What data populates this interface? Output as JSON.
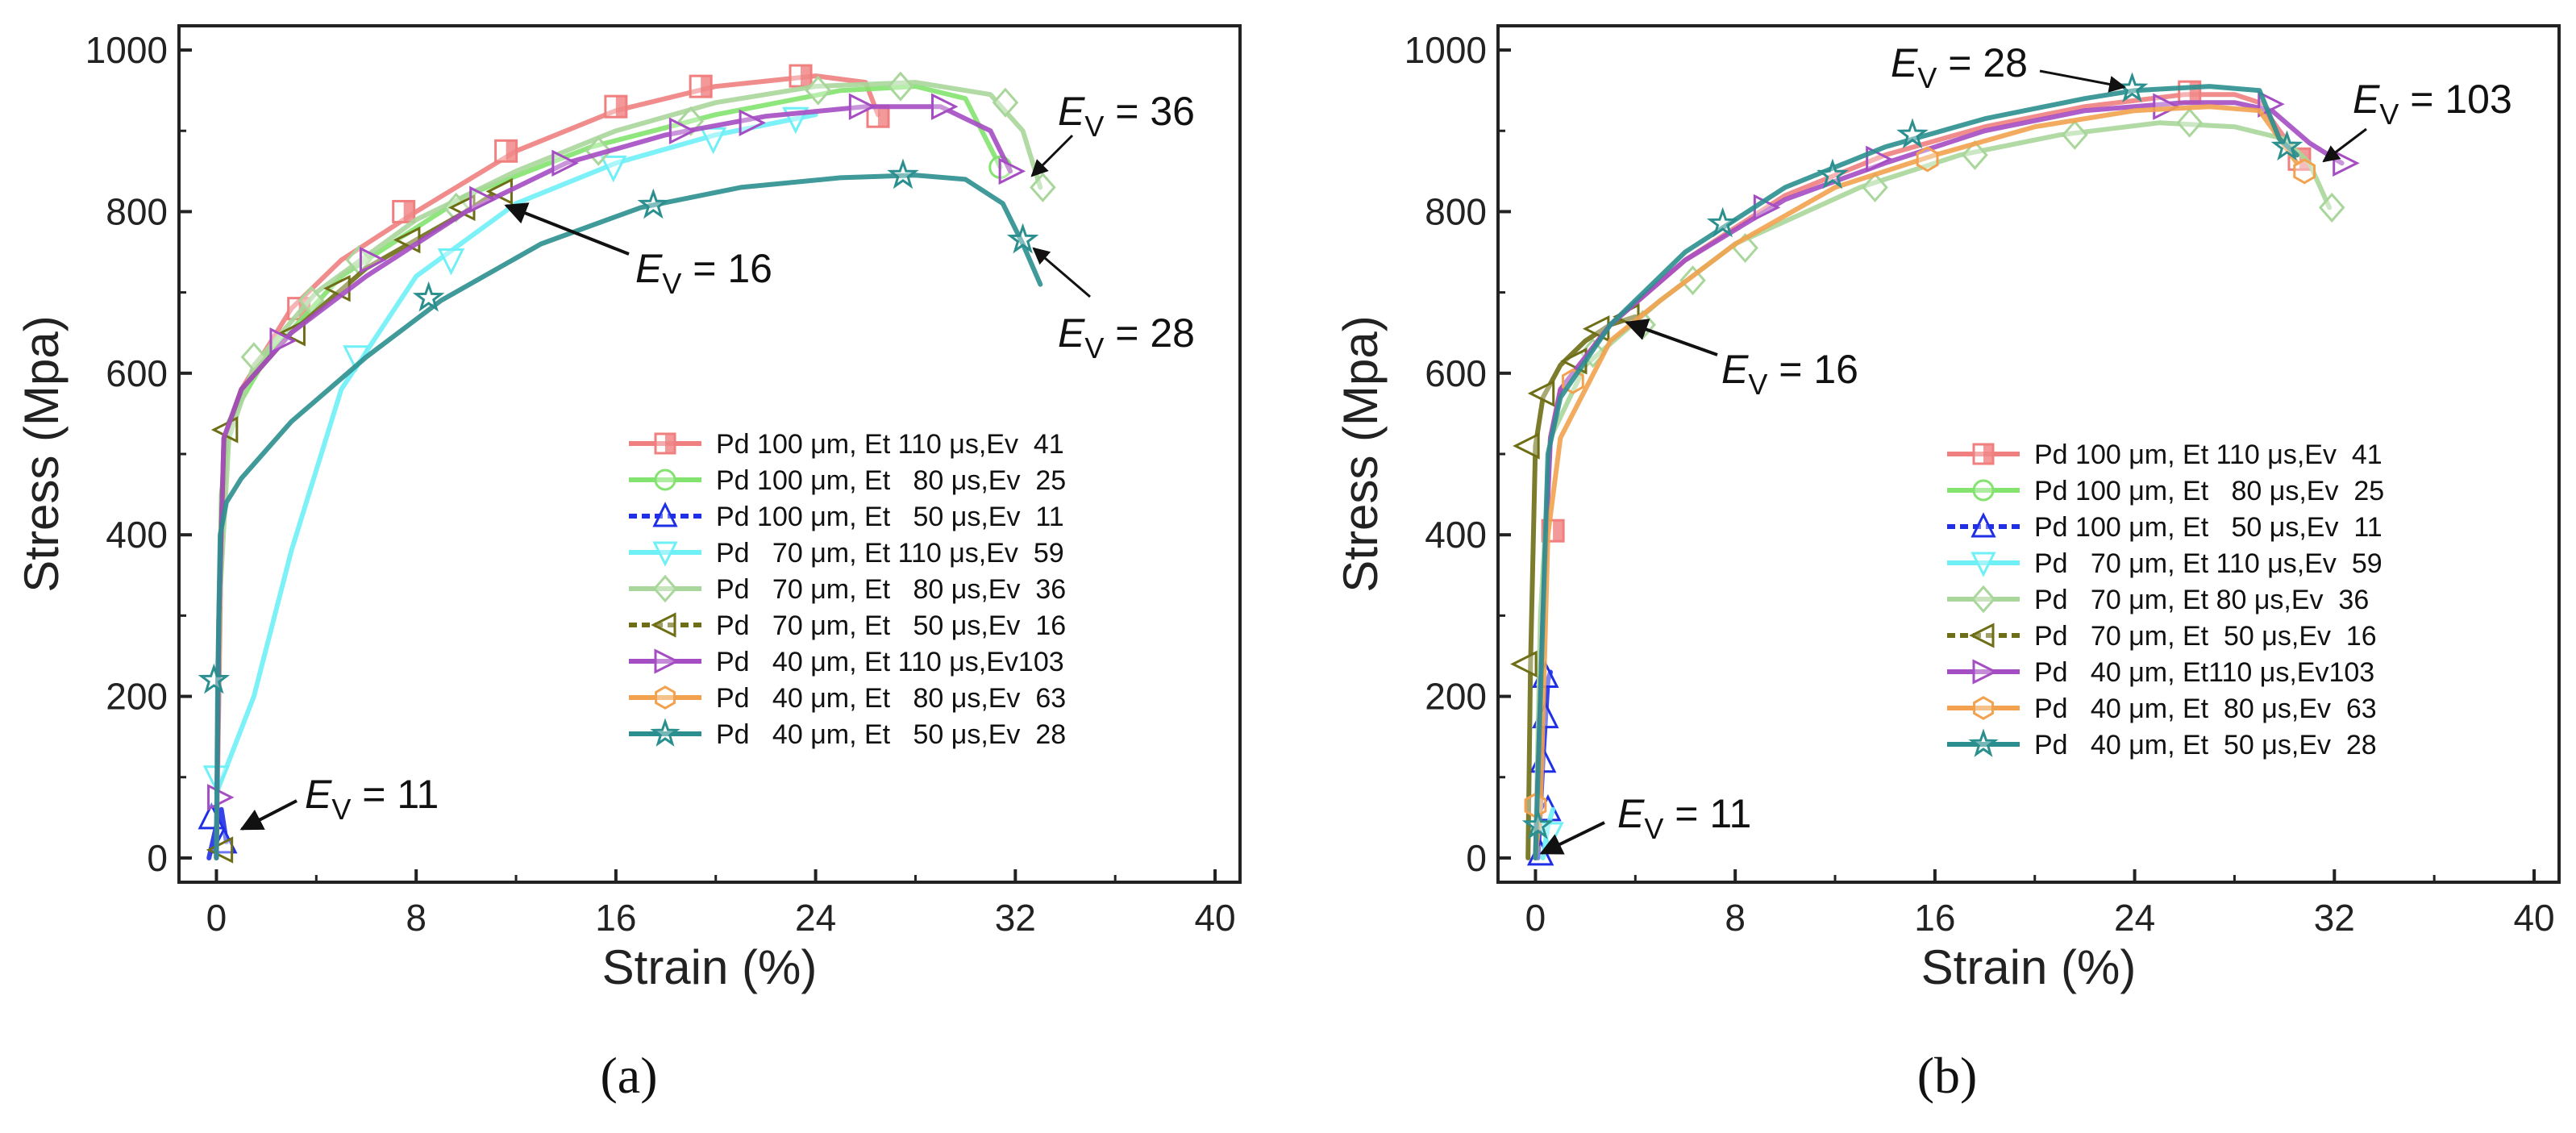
{
  "chart_data": [
    {
      "type": "line",
      "panel_label": "(a)",
      "xlabel": "Strain (%)",
      "ylabel": "Stress (Mpa)",
      "xlim": [
        -1.5,
        41
      ],
      "ylim": [
        -30,
        1030
      ],
      "xticks": [
        0,
        8,
        16,
        24,
        32,
        40
      ],
      "yticks": [
        0,
        200,
        400,
        600,
        800,
        1000
      ],
      "legend_position": "lower-right",
      "series": [
        {
          "name": "Pd 100 μm, Et 110 μs,Ev  41",
          "color": "#f07f7f",
          "marker": "square",
          "x": [
            0,
            0.1,
            0.2,
            0.4,
            1,
            3,
            5,
            8,
            12,
            16,
            20,
            24,
            26,
            26.5
          ],
          "y": [
            0,
            200,
            400,
            520,
            580,
            680,
            740,
            800,
            875,
            925,
            955,
            968,
            960,
            920
          ],
          "markers_x": [
            3.3,
            7.5,
            11.6,
            16,
            19.4,
            23.4,
            26.5
          ],
          "markers_y": [
            680,
            800,
            875,
            930,
            955,
            968,
            918
          ]
        },
        {
          "name": "Pd 100 μm, Et   80 μs,Ev  25",
          "color": "#82e36e",
          "marker": "circle",
          "x": [
            0,
            0.1,
            0.2,
            0.5,
            2,
            5,
            10,
            15,
            20,
            25,
            28,
            30,
            31.4
          ],
          "y": [
            0,
            250,
            450,
            540,
            620,
            720,
            820,
            880,
            920,
            950,
            955,
            940,
            855
          ],
          "markers_x": [
            31.4
          ],
          "markers_y": [
            855
          ]
        },
        {
          "name": "Pd 100 μm, Et   50 μs,Ev  11",
          "color": "#1f2fe6",
          "marker": "triangle-up",
          "x": [
            -0.3,
            0,
            0.2,
            0.4
          ],
          "y": [
            0,
            40,
            60,
            20
          ],
          "markers_x": [
            -0.2,
            0.3
          ],
          "markers_y": [
            50,
            20
          ]
        },
        {
          "name": "Pd   70 μm, Et 110 μs,Ev  59",
          "color": "#6ff0f7",
          "marker": "triangle-down",
          "x": [
            0,
            0.5,
            1.5,
            3,
            5,
            8,
            12,
            16,
            20,
            24
          ],
          "y": [
            80,
            120,
            200,
            380,
            580,
            720,
            810,
            860,
            895,
            920
          ],
          "markers_x": [
            0,
            5.6,
            9.4,
            15.9,
            19.9,
            23.2
          ],
          "markers_y": [
            100,
            620,
            740,
            855,
            890,
            915
          ]
        },
        {
          "name": "Pd   70 μm, Et   80 μs,Ev  36",
          "color": "#a9d69a",
          "marker": "diamond",
          "x": [
            0,
            0.1,
            0.5,
            1.5,
            4,
            8,
            12,
            16,
            20,
            24,
            28,
            31,
            32.3,
            33
          ],
          "y": [
            0,
            300,
            520,
            610,
            700,
            790,
            850,
            900,
            935,
            955,
            960,
            945,
            900,
            830
          ],
          "markers_x": [
            1.5,
            3.8,
            5.7,
            9.6,
            15.3,
            19,
            24.1,
            27.4,
            31.6,
            33.1
          ],
          "markers_y": [
            620,
            690,
            740,
            805,
            875,
            912,
            950,
            955,
            935,
            830
          ]
        },
        {
          "name": "Pd   70 μm, Et   50 μs,Ev  16",
          "color": "#6e6e16",
          "marker": "triangle-left",
          "x": [
            0,
            0.1,
            0.3,
            1,
            3,
            6,
            10,
            11
          ],
          "y": [
            0,
            300,
            520,
            580,
            650,
            730,
            800,
            820
          ],
          "markers_x": [
            0.2,
            0.4,
            3.1,
            4.9,
            7.7,
            9.9,
            11.4
          ],
          "markers_y": [
            10,
            530,
            650,
            705,
            765,
            805,
            825
          ]
        },
        {
          "name": "Pd   40 μm, Et 110 μs,Ev103",
          "color": "#a54dc2",
          "marker": "triangle-right",
          "x": [
            0,
            0.1,
            0.3,
            1,
            3,
            6,
            10,
            14,
            18,
            22,
            26,
            29,
            31,
            31.8
          ],
          "y": [
            0,
            300,
            520,
            580,
            650,
            720,
            800,
            860,
            895,
            918,
            930,
            930,
            900,
            850
          ],
          "markers_x": [
            0.1,
            2.6,
            6.2,
            10.6,
            13.9,
            18.6,
            21.4,
            25.8,
            29.1,
            31.8
          ],
          "markers_y": [
            75,
            640,
            740,
            815,
            860,
            900,
            910,
            930,
            930,
            850
          ]
        },
        {
          "name": "Pd   40 μm, Et   80 μs,Ev  63",
          "color": "#f2a24f",
          "marker": "hexagon",
          "x": [],
          "y": [],
          "markers_x": [],
          "markers_y": []
        },
        {
          "name": "Pd   40 μm, Et   50 μs,Ev  28",
          "color": "#2b8f8f",
          "marker": "star",
          "x": [
            0,
            0.05,
            0.15,
            0.4,
            1,
            3,
            6,
            9,
            13,
            17,
            21,
            25,
            28,
            30,
            31.5,
            32.3,
            33
          ],
          "y": [
            0,
            220,
            400,
            440,
            470,
            540,
            620,
            690,
            760,
            805,
            830,
            842,
            845,
            840,
            810,
            760,
            710
          ],
          "markers_x": [
            -0.1,
            8.5,
            17.5,
            27.5,
            32.3
          ],
          "markers_y": [
            220,
            693,
            808,
            845,
            765
          ]
        }
      ],
      "annotations": [
        {
          "label": "E",
          "sub": "V",
          "value": " = 36"
        },
        {
          "label": "E",
          "sub": "V",
          "value": " = 16"
        },
        {
          "label": "E",
          "sub": "V",
          "value": " = 28"
        },
        {
          "label": "E",
          "sub": "V",
          "value": " = 11"
        }
      ]
    },
    {
      "type": "line",
      "panel_label": "(b)",
      "xlabel": "Strain (%)",
      "ylabel": "Stress (Mpa)",
      "xlim": [
        -1.5,
        41
      ],
      "ylim": [
        -30,
        1030
      ],
      "xticks": [
        0,
        8,
        16,
        24,
        32,
        40
      ],
      "yticks": [
        0,
        200,
        400,
        600,
        800,
        1000
      ],
      "legend_position": "lower-right",
      "series": [
        {
          "name": "Pd 100 μm, Et 110 μs,Ev  41",
          "color": "#f07f7f",
          "marker": "square",
          "x": [
            0,
            0.2,
            0.4,
            0.6,
            1,
            3,
            6,
            10,
            14,
            18,
            22,
            26,
            28,
            29,
            30.5
          ],
          "y": [
            0,
            200,
            400,
            520,
            580,
            660,
            740,
            820,
            870,
            905,
            930,
            945,
            945,
            935,
            870
          ],
          "markers_x": [
            0.7,
            26.2,
            30.6
          ],
          "markers_y": [
            405,
            948,
            865
          ]
        },
        {
          "name": "Pd 100 μm, Et   80 μs,Ev  25",
          "color": "#82e36e",
          "marker": "circle",
          "x": [],
          "y": [],
          "markers_x": [],
          "markers_y": []
        },
        {
          "name": "Pd 100 μm, Et   50 μs,Ev  11",
          "color": "#1f2fe6",
          "marker": "triangle-up",
          "x": [
            0.1,
            0.3,
            0.5,
            0.6
          ],
          "y": [
            0,
            120,
            220,
            230
          ],
          "markers_x": [
            0.3,
            0.4,
            0.4,
            0.5,
            0.2
          ],
          "markers_y": [
            120,
            175,
            225,
            60,
            5
          ]
        },
        {
          "name": "Pd   70 μm, Et 110 μs,Ev  59",
          "color": "#6ff0f7",
          "marker": "triangle-down",
          "x": [
            0.3,
            0.5,
            0.7
          ],
          "y": [
            0,
            40,
            60
          ],
          "markers_x": [
            0.6
          ],
          "markers_y": [
            30
          ]
        },
        {
          "name": "Pd   70 μm, Et 80 μs,Ev  36",
          "color": "#a9d69a",
          "marker": "diamond",
          "x": [
            0,
            0.2,
            0.6,
            2,
            5,
            8,
            13,
            17,
            21,
            25,
            28,
            30,
            31,
            31.8
          ],
          "y": [
            0,
            300,
            520,
            610,
            690,
            760,
            830,
            870,
            895,
            910,
            905,
            890,
            860,
            805
          ],
          "markers_x": [
            2.3,
            4.3,
            6.3,
            8.4,
            13.6,
            17.6,
            21.6,
            26.2,
            31.9
          ],
          "markers_y": [
            625,
            660,
            715,
            755,
            830,
            870,
            895,
            910,
            805
          ]
        },
        {
          "name": "Pd   70 μm, Et  50 μs,Ev  16",
          "color": "#6e6e16",
          "marker": "triangle-left",
          "x": [
            -0.3,
            -0.2,
            0,
            0.3,
            1,
            2,
            3,
            4
          ],
          "y": [
            0,
            240,
            510,
            570,
            610,
            640,
            660,
            670
          ],
          "markers_x": [
            -0.4,
            -0.3,
            0.3,
            1.6,
            2.5,
            3.7
          ],
          "markers_y": [
            240,
            510,
            575,
            615,
            655,
            670
          ]
        },
        {
          "name": "Pd   40 μm, Et110 μs,Ev103",
          "color": "#a54dc2",
          "marker": "triangle-right",
          "x": [
            0,
            0.3,
            0.6,
            1,
            3,
            6,
            10,
            14,
            18,
            22,
            26,
            28,
            29.5,
            31,
            32.3
          ],
          "y": [
            0,
            300,
            520,
            580,
            660,
            740,
            815,
            860,
            900,
            925,
            935,
            935,
            925,
            885,
            860
          ],
          "markers_x": [
            9.2,
            13.7,
            25.2,
            29.4,
            32.4
          ],
          "markers_y": [
            805,
            865,
            930,
            933,
            860
          ]
        },
        {
          "name": "Pd   40 μm, Et  80 μs,Ev  63",
          "color": "#f2a24f",
          "marker": "hexagon",
          "x": [
            0,
            0.2,
            0.5,
            1,
            2,
            3,
            5,
            8,
            12,
            16,
            20,
            24,
            27,
            29,
            30.5
          ],
          "y": [
            0,
            60,
            400,
            520,
            580,
            640,
            690,
            760,
            830,
            870,
            905,
            925,
            930,
            925,
            860
          ],
          "markers_x": [
            0,
            1.5,
            15.7,
            30.8
          ],
          "markers_y": [
            65,
            590,
            865,
            850
          ]
        },
        {
          "name": "Pd   40 μm, Et  50 μs,Ev  28",
          "color": "#2b8f8f",
          "marker": "star",
          "x": [
            0,
            0.2,
            0.5,
            1,
            3,
            6,
            10,
            14,
            18,
            22,
            24,
            27,
            29,
            29.8,
            30.5
          ],
          "y": [
            0,
            200,
            500,
            570,
            660,
            750,
            830,
            880,
            915,
            940,
            950,
            955,
            950,
            890,
            870
          ],
          "markers_x": [
            0.1,
            7.5,
            11.9,
            15.1,
            23.9,
            30.1
          ],
          "markers_y": [
            40,
            785,
            845,
            895,
            952,
            880
          ]
        }
      ],
      "annotations": [
        {
          "label": "E",
          "sub": "V",
          "value": " = 28"
        },
        {
          "label": "E",
          "sub": "V",
          "value": " = 103"
        },
        {
          "label": "E",
          "sub": "V",
          "value": " = 16"
        },
        {
          "label": "E",
          "sub": "V",
          "value": " = 11"
        }
      ]
    }
  ]
}
